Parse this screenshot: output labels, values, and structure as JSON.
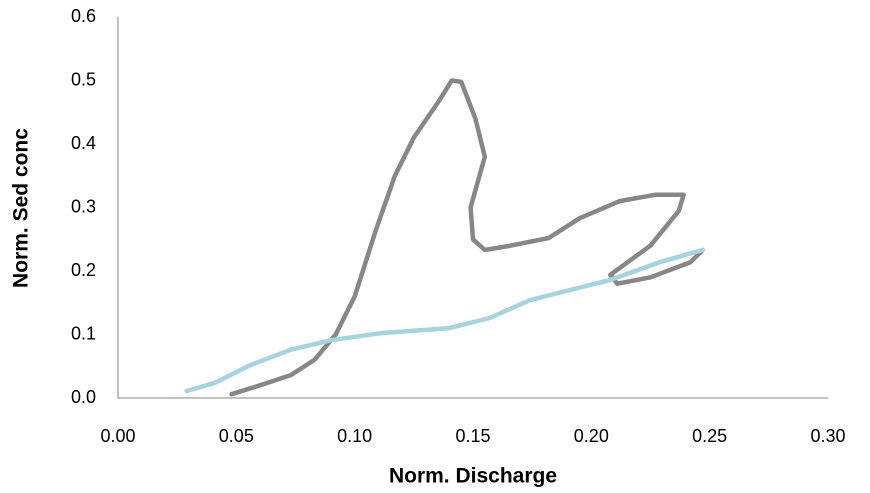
{
  "chart_data": {
    "type": "line",
    "xlabel": "Norm. Discharge",
    "ylabel": "Norm. Sed conc",
    "xlim": [
      0,
      0.3
    ],
    "ylim": [
      0,
      0.6
    ],
    "xticks": [
      {
        "value": 0,
        "label": "0.00"
      },
      0.05,
      {
        "value": 0.1,
        "label": "0.10"
      },
      0.15,
      {
        "value": 0.2,
        "label": "0.20"
      },
      0.25,
      {
        "value": 0.3,
        "label": "0.30"
      }
    ],
    "yticks": [
      {
        "value": 0,
        "label": "0.0"
      },
      0.1,
      0.2,
      0.3,
      0.4,
      0.5,
      0.6
    ],
    "grid": false,
    "series": [
      {
        "color": "#878787",
        "x": [
          0.048,
          0.06,
          0.073,
          0.083,
          0.092,
          0.1,
          0.109,
          0.117,
          0.125,
          0.136,
          0.141,
          0.145,
          0.151,
          0.155,
          0.149,
          0.15,
          0.155,
          0.166,
          0.182,
          0.195,
          0.212,
          0.227,
          0.239,
          0.237,
          0.225,
          0.208,
          0.211,
          0.225,
          0.242,
          0.247
        ],
        "values": [
          0.006,
          0.02,
          0.036,
          0.06,
          0.1,
          0.16,
          0.265,
          0.35,
          0.41,
          0.47,
          0.5,
          0.498,
          0.44,
          0.38,
          0.3,
          0.25,
          0.233,
          0.24,
          0.252,
          0.283,
          0.31,
          0.32,
          0.32,
          0.295,
          0.24,
          0.194,
          0.18,
          0.19,
          0.214,
          0.233
        ]
      },
      {
        "color": "#a5d4dc",
        "x": [
          0.029,
          0.041,
          0.056,
          0.073,
          0.09,
          0.111,
          0.14,
          0.157,
          0.174,
          0.191,
          0.208,
          0.229,
          0.247
        ],
        "values": [
          0.011,
          0.024,
          0.052,
          0.076,
          0.091,
          0.102,
          0.11,
          0.126,
          0.154,
          0.17,
          0.186,
          0.214,
          0.233
        ]
      }
    ]
  }
}
